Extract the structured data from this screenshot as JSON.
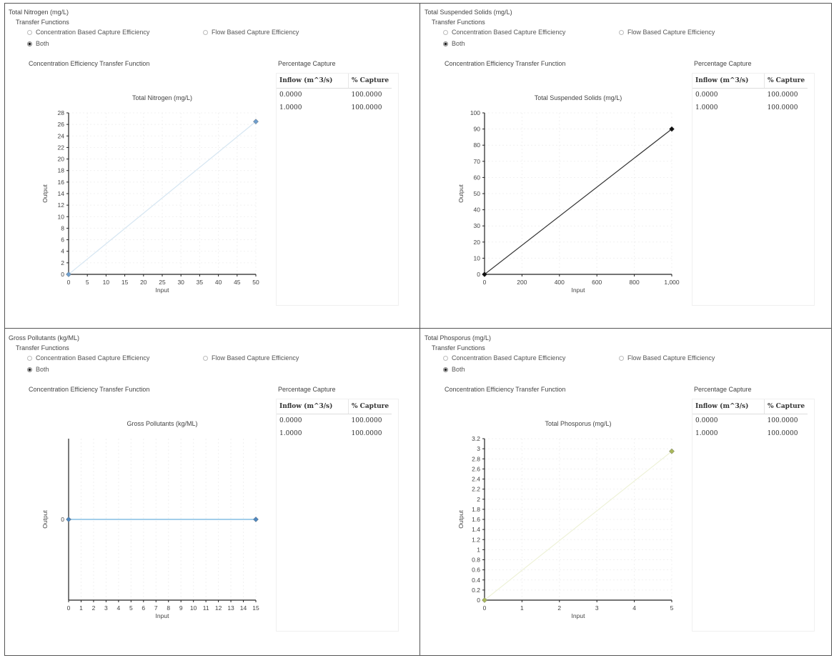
{
  "common": {
    "transfer_functions_label": "Transfer Functions",
    "conc_option": "Concentration Based Capture Efficiency",
    "flow_option": "Flow Based Capture Efficiency",
    "both_option": "Both",
    "conc_tf_label": "Concentration Efficiency Transfer Function",
    "pct_capture_label": "Percentage Capture",
    "col_inflow": "Inflow (m^3/s)",
    "col_capture": "% Capture"
  },
  "panels": [
    {
      "title": "Total Nitrogen (mg/L)",
      "rows": [
        {
          "inflow": "0.0000",
          "capture": "100.0000"
        },
        {
          "inflow": "1.0000",
          "capture": "100.0000"
        }
      ]
    },
    {
      "title": "Total Suspended Solids (mg/L)",
      "rows": [
        {
          "inflow": "0.0000",
          "capture": "100.0000"
        },
        {
          "inflow": "1.0000",
          "capture": "100.0000"
        }
      ]
    },
    {
      "title": "Gross Pollutants (kg/ML)",
      "rows": [
        {
          "inflow": "0.0000",
          "capture": "100.0000"
        },
        {
          "inflow": "1.0000",
          "capture": "100.0000"
        }
      ]
    },
    {
      "title": "Total Phosporus (mg/L)",
      "rows": [
        {
          "inflow": "0.0000",
          "capture": "100.0000"
        },
        {
          "inflow": "1.0000",
          "capture": "100.0000"
        }
      ]
    }
  ],
  "chart_data": [
    {
      "type": "line",
      "title": "Total Nitrogen (mg/L)",
      "xlabel": "Input",
      "ylabel": "Output",
      "xlim": [
        0,
        50
      ],
      "ylim": [
        0,
        28
      ],
      "xticks": [
        "0",
        "5",
        "10",
        "15",
        "20",
        "25",
        "30",
        "35",
        "40",
        "45",
        "50"
      ],
      "yticks": [
        "0",
        "2",
        "4",
        "6",
        "8",
        "10",
        "12",
        "14",
        "16",
        "18",
        "20",
        "22",
        "24",
        "26",
        "28"
      ],
      "grid": true,
      "series": [
        {
          "x": [
            0,
            50
          ],
          "y": [
            0,
            26.5
          ],
          "line_color": "#d6e6f2",
          "marker_color": "#6f9fce"
        }
      ]
    },
    {
      "type": "line",
      "title": "Total Suspended Solids (mg/L)",
      "xlabel": "Input",
      "ylabel": "Output",
      "xlim": [
        0,
        1000
      ],
      "ylim": [
        0,
        100
      ],
      "xticks": [
        "0",
        "200",
        "400",
        "600",
        "800",
        "1,000"
      ],
      "yticks": [
        "0",
        "10",
        "20",
        "30",
        "40",
        "50",
        "60",
        "70",
        "80",
        "90",
        "100"
      ],
      "grid": true,
      "series": [
        {
          "x": [
            0,
            1000
          ],
          "y": [
            0,
            90
          ],
          "line_color": "#333333",
          "marker_color": "#111111"
        }
      ]
    },
    {
      "type": "line",
      "title": "Gross Pollutants (kg/ML)",
      "xlabel": "Input",
      "ylabel": "Output",
      "xlim": [
        0,
        15
      ],
      "ylim": [
        -1,
        1
      ],
      "xticks": [
        "0",
        "1",
        "2",
        "3",
        "4",
        "5",
        "6",
        "7",
        "8",
        "9",
        "10",
        "11",
        "12",
        "13",
        "14",
        "15"
      ],
      "yticks": [
        "0"
      ],
      "grid": true,
      "series": [
        {
          "x": [
            0,
            15
          ],
          "y": [
            0,
            0
          ],
          "line_color": "#6ab0de",
          "marker_color": "#4f88c0"
        }
      ]
    },
    {
      "type": "line",
      "title": "Total Phosporus (mg/L)",
      "xlabel": "Input",
      "ylabel": "Output",
      "xlim": [
        0,
        5
      ],
      "ylim": [
        0,
        3.2
      ],
      "xticks": [
        "0",
        "1",
        "2",
        "3",
        "4",
        "5"
      ],
      "yticks": [
        "0",
        "0.2",
        "0.4",
        "0.6",
        "0.8",
        "1",
        "1.2",
        "1.4",
        "1.6",
        "1.8",
        "2",
        "2.2",
        "2.4",
        "2.6",
        "2.8",
        "3",
        "3.2"
      ],
      "grid": true,
      "series": [
        {
          "x": [
            0,
            5
          ],
          "y": [
            0,
            2.95
          ],
          "line_color": "#eef2d8",
          "marker_color": "#a9b85a"
        }
      ]
    }
  ]
}
